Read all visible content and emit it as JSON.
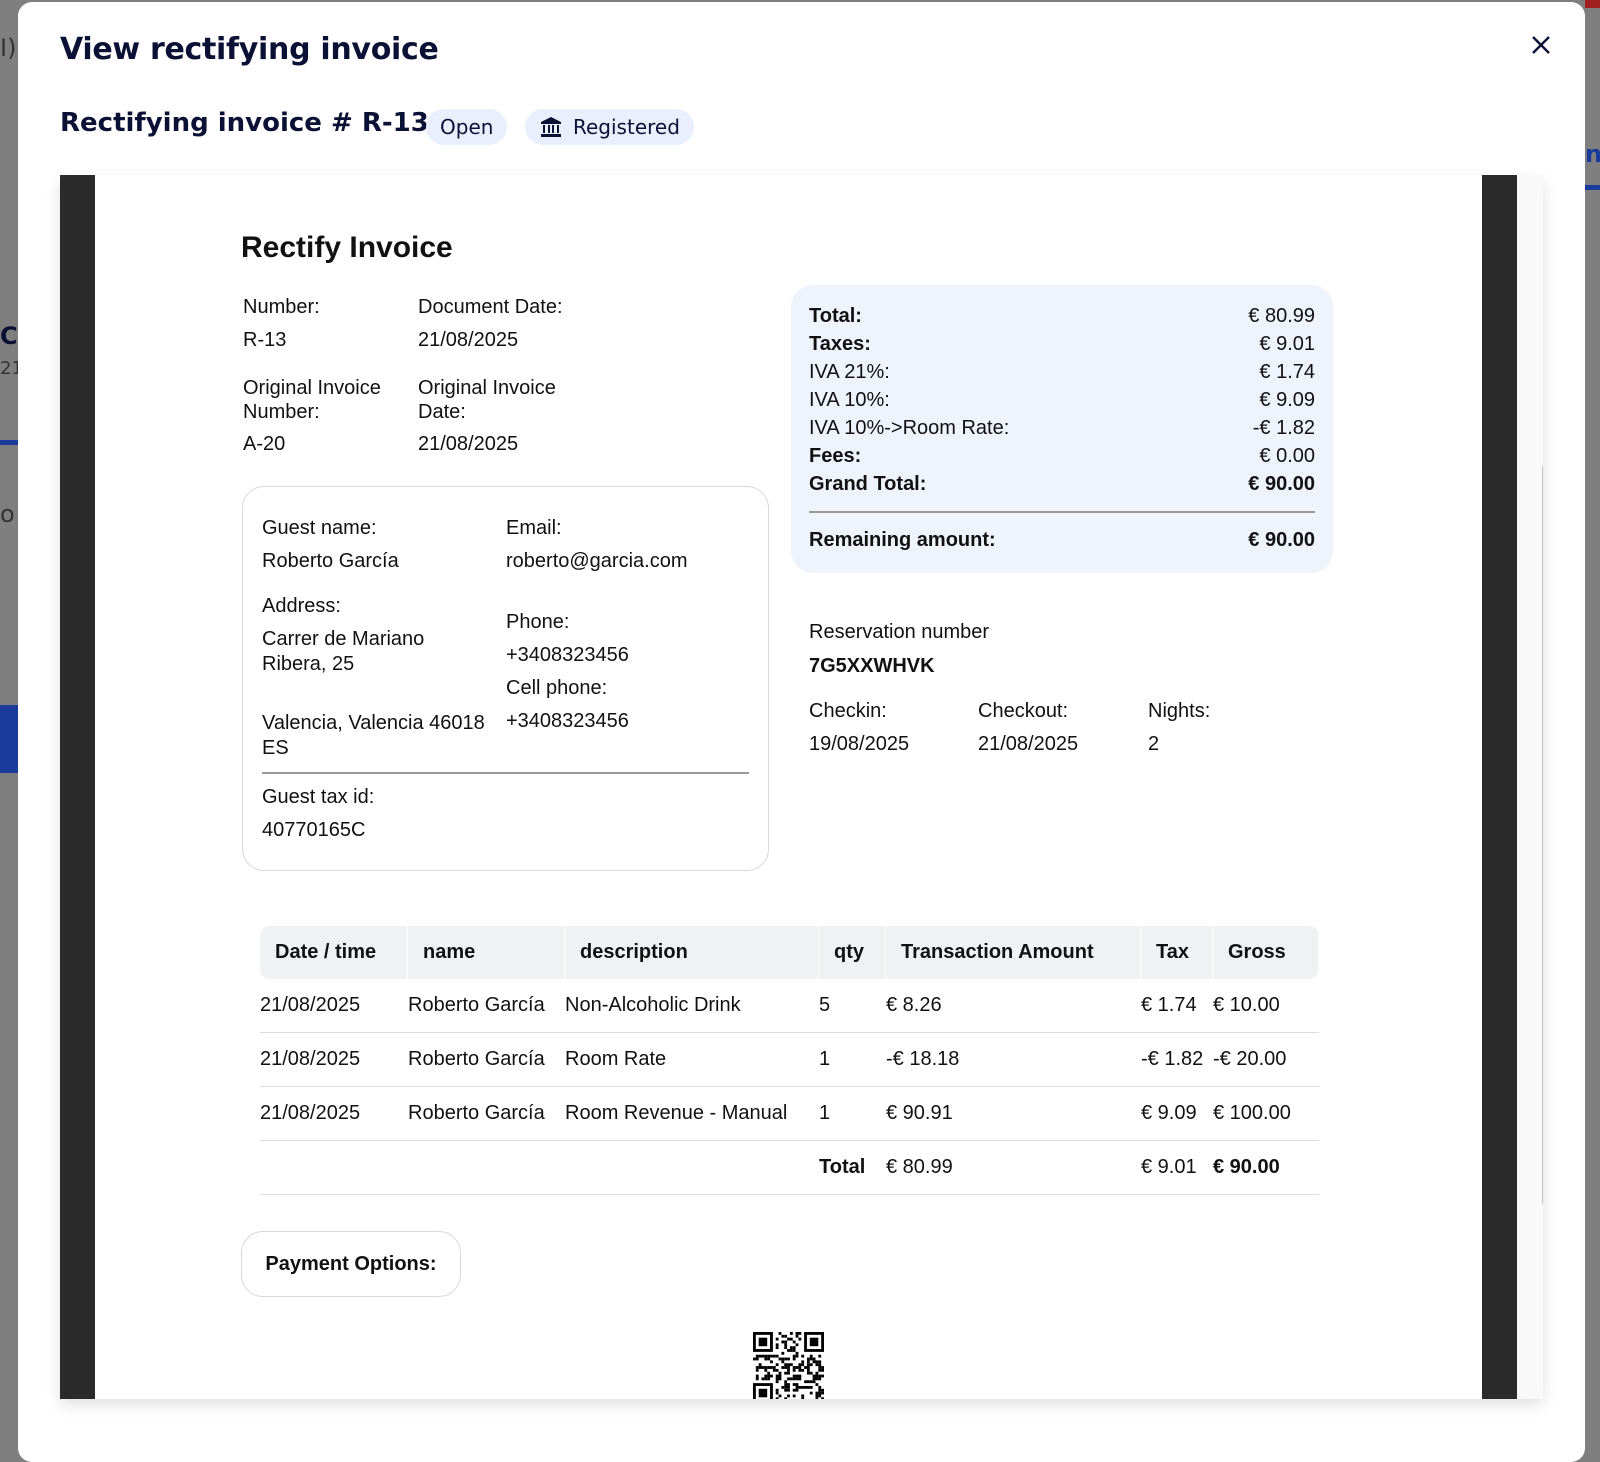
{
  "background": {
    "left_fragments": [
      "I)",
      "C",
      "21",
      "o"
    ],
    "right_fragment": "nt"
  },
  "modal": {
    "title": "View rectifying invoice",
    "subtitle": "Rectifying invoice # R-13",
    "status_badge": "Open",
    "registered_badge": "Registered",
    "registered_icon": "bank-icon",
    "close_icon": "close-icon"
  },
  "document": {
    "heading": "Rectify Invoice",
    "number_label": "Number:",
    "number": "R-13",
    "doc_date_label": "Document Date:",
    "doc_date": "21/08/2025",
    "orig_num_label_1": "Original Invoice",
    "orig_num_label_2": "Number:",
    "orig_num": "A-20",
    "orig_date_label_1": "Original Invoice",
    "orig_date_label_2": "Date:",
    "orig_date": "21/08/2025",
    "guest": {
      "name_label": "Guest name:",
      "name": "Roberto García",
      "email_label": "Email:",
      "email": "roberto@garcia.com",
      "address_label": "Address:",
      "address_1": "Carrer de Mariano",
      "address_2": "Ribera, 25",
      "address_3": "Valencia, Valencia 46018",
      "address_4": "ES",
      "phone_label": "Phone:",
      "phone": "+3408323456",
      "cell_label": "Cell phone:",
      "cell": "+3408323456",
      "tax_label": "Guest tax id:",
      "tax_id": "40770165C"
    },
    "summary": [
      {
        "label": "Total:",
        "value": "€ 80.99",
        "bold_label": true,
        "bold_value": false
      },
      {
        "label": "Taxes:",
        "value": "€ 9.01",
        "bold_label": true,
        "bold_value": false
      },
      {
        "label": "IVA 21%:",
        "value": "€ 1.74",
        "bold_label": false,
        "bold_value": false
      },
      {
        "label": "IVA 10%:",
        "value": "€ 9.09",
        "bold_label": false,
        "bold_value": false
      },
      {
        "label": "IVA 10%->Room Rate:",
        "value": "-€ 1.82",
        "bold_label": false,
        "bold_value": false
      },
      {
        "label": "Fees:",
        "value": "€ 0.00",
        "bold_label": true,
        "bold_value": false
      },
      {
        "label": "Grand Total:",
        "value": "€ 90.00",
        "bold_label": true,
        "bold_value": true
      }
    ],
    "remaining_label": "Remaining amount:",
    "remaining": "€ 90.00",
    "reservation": {
      "label": "Reservation number",
      "number": "7G5XXWHVK",
      "checkin_label": "Checkin:",
      "checkin": "19/08/2025",
      "checkout_label": "Checkout:",
      "checkout": "21/08/2025",
      "nights_label": "Nights:",
      "nights": "2"
    },
    "table": {
      "headers": [
        "Date / time",
        "name",
        "description",
        "qty",
        "Transaction Amount",
        "Tax",
        "Gross"
      ],
      "rows": [
        [
          "21/08/2025",
          "Roberto García",
          "Non-Alcoholic Drink",
          "5",
          "€ 8.26",
          "€ 1.74",
          "€ 10.00"
        ],
        [
          "21/08/2025",
          "Roberto García",
          "Room Rate",
          "1",
          "-€ 18.18",
          "-€ 1.82",
          "-€ 20.00"
        ],
        [
          "21/08/2025",
          "Roberto García",
          "Room Revenue - Manual",
          "1",
          "€ 90.91",
          "€ 9.09",
          "€ 100.00"
        ]
      ],
      "total": {
        "label": "Total",
        "amount": "€ 80.99",
        "tax": "€ 9.01",
        "gross": "€ 90.00"
      }
    },
    "payment_options": "Payment Options:"
  },
  "colors": {
    "primary": "#0b1035",
    "badge_bg": "#e9effc",
    "summary_bg": "#eef3fc"
  }
}
